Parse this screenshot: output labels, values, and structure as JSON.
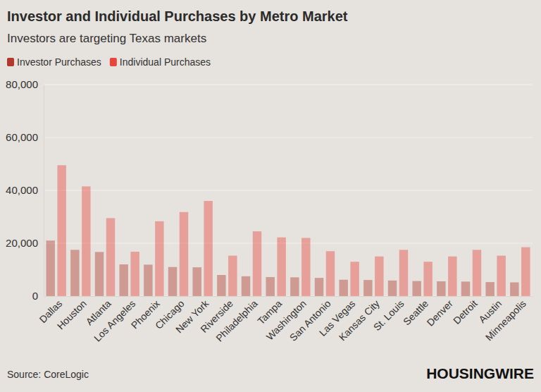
{
  "chart_data": {
    "type": "bar",
    "title": "Investor and Individual Purchases by Metro Market",
    "subtitle": "Investors are targeting Texas markets",
    "source": "Source: CoreLogic",
    "logo": "HOUSINGWIRE",
    "categories": [
      "Dallas",
      "Houston",
      "Atlanta",
      "Los Angeles",
      "Phoenix",
      "Chicago",
      "New York",
      "Riverside",
      "Philadelphia",
      "Tampa",
      "Washington",
      "San Antonio",
      "Las Vegas",
      "Kansas City",
      "St. Louis",
      "Seattle",
      "Denver",
      "Detroit",
      "Austin",
      "Minneapolis"
    ],
    "series": [
      {
        "name": "Investor Purchases",
        "color": "#b0382c",
        "values": [
          21000,
          17500,
          16700,
          12000,
          11900,
          11000,
          10900,
          8000,
          7500,
          7200,
          7100,
          6900,
          6200,
          6100,
          5900,
          5700,
          5600,
          5500,
          5300,
          5200
        ]
      },
      {
        "name": "Individual Purchases",
        "color": "#e8453c",
        "values": [
          49500,
          41500,
          29500,
          16800,
          28300,
          31800,
          36000,
          15300,
          24500,
          22200,
          22000,
          17000,
          13000,
          15000,
          17500,
          13000,
          15000,
          17500,
          15300,
          18500
        ]
      }
    ],
    "ylim": [
      0,
      80000
    ],
    "yticks": [
      0,
      {
        "value": 20000,
        "label": "20,000"
      },
      {
        "value": 40000,
        "label": "40,000"
      },
      {
        "value": 60000,
        "label": "60,000"
      },
      {
        "value": 80000,
        "label": "80,000"
      }
    ],
    "grid": true,
    "legend": "top-left"
  }
}
